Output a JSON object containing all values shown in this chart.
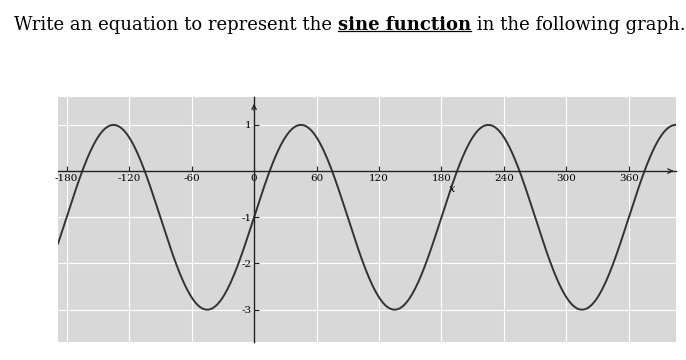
{
  "xmin": -180,
  "xmax": 390,
  "ymin": -3.7,
  "ymax": 1.6,
  "x_ticks": [
    -180,
    -120,
    -60,
    0,
    60,
    120,
    180,
    240,
    300,
    360
  ],
  "y_ticks": [
    -3,
    -2,
    -1,
    1
  ],
  "y_tick_labels": [
    "-3",
    "-2",
    "-1",
    "1"
  ],
  "amplitude": 2,
  "vertical_shift": -1,
  "period_deg": 180,
  "xlabel": "x",
  "line_color": "#333333",
  "line_width": 1.4,
  "bg_color": "#d8d8d8",
  "grid_color": "#ffffff",
  "axis_color": "#222222",
  "figure_bg": "#ffffff",
  "title_prefix": "Write an equation to represent the ",
  "title_bold": "sine function",
  "title_suffix": " in the following graph.",
  "title_fontsize": 13
}
